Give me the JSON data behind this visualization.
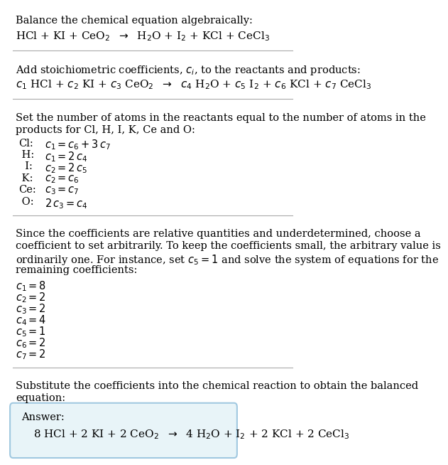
{
  "bg_color": "#ffffff",
  "text_color": "#000000",
  "fs": 10.5,
  "fs_eq": 11.0,
  "section1_title": "Balance the chemical equation algebraically:",
  "section1_eq": "HCl + KI + CeO$_2$  $\\rightarrow$  H$_2$O + I$_2$ + KCl + CeCl$_3$",
  "section2_title": "Add stoichiometric coefficients, $c_i$, to the reactants and products:",
  "section2_eq": "$c_1$ HCl + $c_2$ KI + $c_3$ CeO$_2$  $\\rightarrow$  $c_4$ H$_2$O + $c_5$ I$_2$ + $c_6$ KCl + $c_7$ CeCl$_3$",
  "section3_title_line1": "Set the number of atoms in the reactants equal to the number of atoms in the",
  "section3_title_line2": "products for Cl, H, I, K, Ce and O:",
  "equations": [
    [
      "Cl:",
      "$c_1 = c_6 + 3\\,c_7$"
    ],
    [
      "H:",
      "$c_1 = 2\\,c_4$"
    ],
    [
      "I:",
      "$c_2 = 2\\,c_5$"
    ],
    [
      "K:",
      "$c_2 = c_6$"
    ],
    [
      "Ce:",
      "$c_3 = c_7$"
    ],
    [
      "O:",
      "$2\\,c_3 = c_4$"
    ]
  ],
  "section4_lines": [
    "Since the coefficients are relative quantities and underdetermined, choose a",
    "coefficient to set arbitrarily. To keep the coefficients small, the arbitrary value is",
    "ordinarily one. For instance, set $c_5 = 1$ and solve the system of equations for the",
    "remaining coefficients:"
  ],
  "coeffs": [
    "$c_1 = 8$",
    "$c_2 = 2$",
    "$c_3 = 2$",
    "$c_4 = 4$",
    "$c_5 = 1$",
    "$c_6 = 2$",
    "$c_7 = 2$"
  ],
  "section5_line1": "Substitute the coefficients into the chemical reaction to obtain the balanced",
  "section5_line2": "equation:",
  "answer_label": "Answer:",
  "answer_eq": "8 HCl + 2 KI + 2 CeO$_2$  $\\rightarrow$  4 H$_2$O + I$_2$ + 2 KCl + 2 CeCl$_3$",
  "box_color": "#e8f4f8",
  "border_color": "#a0c8e0",
  "sep_color": "#aaaaaa",
  "eq_labels": [
    "Cl:",
    " H:",
    "  I:",
    " K:",
    "Ce:",
    " O:"
  ],
  "eq_indent_label": 0.04,
  "eq_indent_eq": 0.13
}
